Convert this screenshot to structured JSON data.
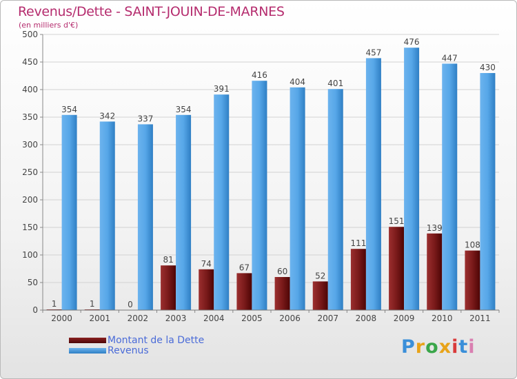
{
  "title": "Revenus/Dette - SAINT-JOUIN-DE-MARNES",
  "subtitle": "(en milliers d'€)",
  "logo": {
    "text": "Proxiti",
    "colors": [
      "#3a8fd9",
      "#e8a319",
      "#3aa64a",
      "#e8a319",
      "#d93a3a",
      "#3a8fd9",
      "#d97fb1"
    ]
  },
  "chart_data": {
    "type": "bar",
    "categories": [
      "2000",
      "2001",
      "2002",
      "2003",
      "2004",
      "2005",
      "2006",
      "2007",
      "2008",
      "2009",
      "2010",
      "2011"
    ],
    "series": [
      {
        "name": "Montant de la Dette",
        "color": "#6b0d0d",
        "values": [
          1,
          1,
          0,
          81,
          74,
          67,
          60,
          52,
          111,
          151,
          139,
          108
        ]
      },
      {
        "name": "Revenus",
        "color": "#4f9fe0",
        "values": [
          354,
          342,
          337,
          354,
          391,
          416,
          404,
          401,
          457,
          476,
          447,
          430
        ]
      }
    ],
    "ylim": [
      0,
      500
    ],
    "yticks": [
      0,
      50,
      100,
      150,
      200,
      250,
      300,
      350,
      400,
      450,
      500
    ],
    "grid": true,
    "legend": "bottom-left"
  }
}
